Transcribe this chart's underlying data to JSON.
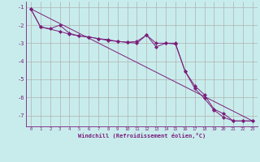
{
  "xlabel": "Windchill (Refroidissement éolien,°C)",
  "background_color": "#c8ecec",
  "grid_color": "#b0b0b0",
  "line_color": "#7b1e7b",
  "xlim": [
    -0.5,
    23.5
  ],
  "ylim": [
    -7.6,
    -0.7
  ],
  "yticks": [
    -1,
    -2,
    -3,
    -4,
    -5,
    -6,
    -7
  ],
  "xticks": [
    0,
    1,
    2,
    3,
    4,
    5,
    6,
    7,
    8,
    9,
    10,
    11,
    12,
    13,
    14,
    15,
    16,
    17,
    18,
    19,
    20,
    21,
    22,
    23
  ],
  "series1_x": [
    0,
    1,
    2,
    3,
    4,
    5,
    6,
    7,
    8,
    9,
    10,
    11,
    12,
    13,
    14,
    15,
    16,
    17,
    18,
    19,
    20,
    21,
    22,
    23
  ],
  "series1_y": [
    -1.1,
    -2.1,
    -2.2,
    -2.0,
    -2.45,
    -2.6,
    -2.65,
    -2.75,
    -2.85,
    -2.9,
    -2.95,
    -2.9,
    -2.55,
    -3.2,
    -3.0,
    -3.05,
    -4.55,
    -5.35,
    -5.85,
    -6.65,
    -6.9,
    -7.3,
    -7.3,
    -7.3
  ],
  "series2_x": [
    0,
    1,
    3,
    4,
    5,
    6,
    7,
    8,
    9,
    10,
    11,
    12,
    13,
    14,
    15,
    16,
    17,
    18,
    19,
    20,
    21,
    22,
    23
  ],
  "series2_y": [
    -1.1,
    -2.1,
    -2.35,
    -2.5,
    -2.6,
    -2.65,
    -2.75,
    -2.8,
    -2.9,
    -2.95,
    -3.0,
    -2.55,
    -3.0,
    -3.0,
    -3.0,
    -4.55,
    -5.5,
    -6.05,
    -6.7,
    -7.1,
    -7.3,
    -7.3,
    -7.3
  ],
  "trend_x": [
    0,
    23
  ],
  "trend_y": [
    -1.1,
    -7.3
  ]
}
